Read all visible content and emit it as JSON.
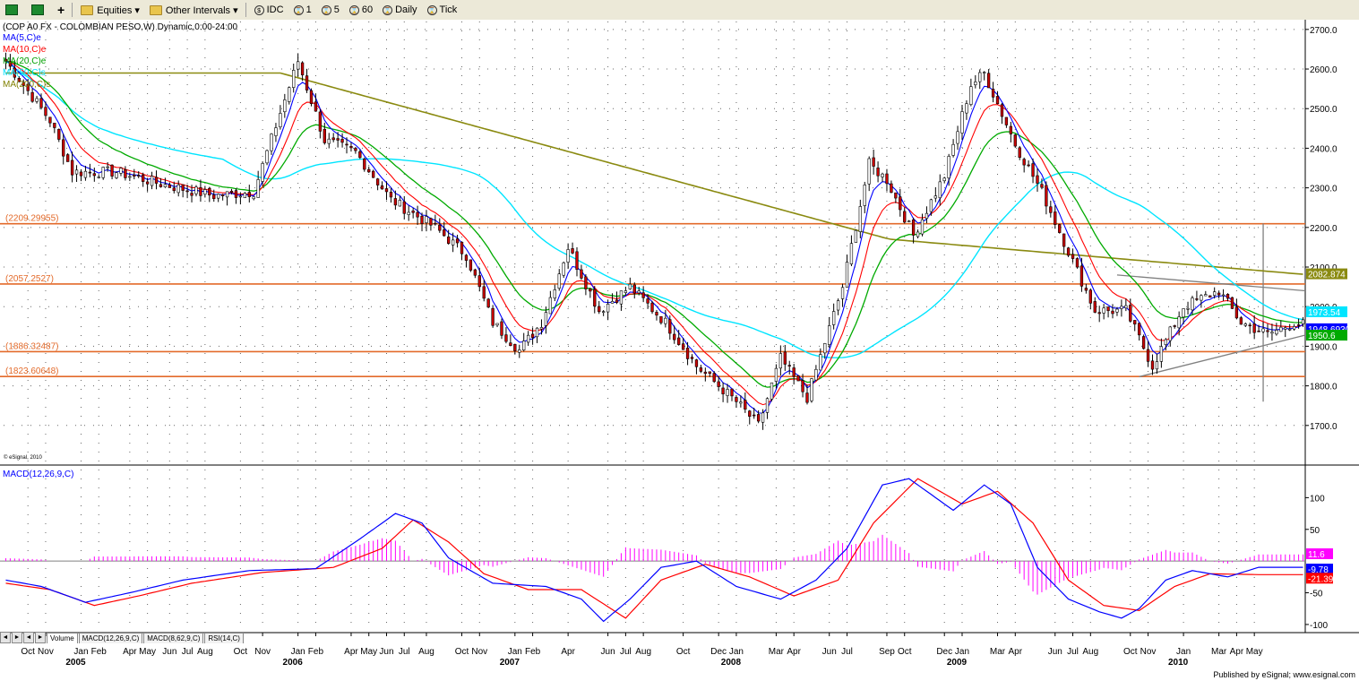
{
  "toolbar": {
    "items": [
      {
        "icon": "grid-view-icon",
        "label": ""
      },
      {
        "icon": "layout-icon",
        "label": ""
      },
      {
        "icon": "add-icon",
        "label": ""
      },
      {
        "icon": "folder-icon",
        "label": "Equities ▾"
      },
      {
        "icon": "folder-icon",
        "label": "Other Intervals ▾"
      },
      {
        "icon": "symbol-icon",
        "label": "IDC"
      },
      {
        "icon": "interval-icon",
        "label": "1"
      },
      {
        "icon": "interval-icon",
        "label": "5"
      },
      {
        "icon": "interval-icon",
        "label": "60"
      },
      {
        "icon": "interval-icon",
        "label": "Daily"
      },
      {
        "icon": "interval-icon",
        "label": "Tick"
      }
    ]
  },
  "chart_data": {
    "type": "candlestick",
    "title": "(COP A0 FX - COLOMBIAN PESO,W) Dynamic,0:00-24:00",
    "watermark": "© eSignal, 2010",
    "footer": "Published by eSignal; www.esignal.com",
    "legend": [
      {
        "label": "MA(5,C)e",
        "color": "#0000ff"
      },
      {
        "label": "MA(10,C)e",
        "color": "#ff0000"
      },
      {
        "label": "MA(20,C)e",
        "color": "#00a000"
      },
      {
        "label": "MA(50,C)s",
        "color": "#00e0ff"
      },
      {
        "label": "MA(200,C)s",
        "color": "#808000"
      }
    ],
    "colors": {
      "ma5": "#0000ff",
      "ma10": "#ff0000",
      "ma20": "#00aa00",
      "ma50": "#00e5ff",
      "ma200": "#8a8a10",
      "up": "#ffffff",
      "down": "#cc0000",
      "hline": "#e36a2a",
      "macd": "#0000ff",
      "signal": "#ff0000",
      "hist": "#ff00ff",
      "trend": "#808080"
    },
    "yaxis": {
      "ylim": [
        1600,
        2720
      ],
      "ticks": [
        "2700.0",
        "2600.0",
        "2500.0",
        "2400.0",
        "2300.0",
        "2200.0",
        "2100.0",
        "2000.0",
        "1900.0",
        "1800.0",
        "1700.0"
      ],
      "tick_values": [
        2700,
        2600,
        2500,
        2400,
        2300,
        2200,
        2100,
        2000,
        1900,
        1800,
        1700
      ]
    },
    "hlines": [
      {
        "label": "(2209.29955)",
        "value": 2209.3
      },
      {
        "label": "(2057.2527)",
        "value": 2057.25
      },
      {
        "label": "(1886.32487)",
        "value": 1886.32
      },
      {
        "label": "(1823.60648)",
        "value": 1823.61
      }
    ],
    "price_tags": [
      {
        "label": "2082.874",
        "value": 2082.874,
        "bg": "#8a8a10",
        "fg": "#ffffff"
      },
      {
        "label": "1973.54",
        "value": 1973.54,
        "bg": "#00e5ff",
        "fg": "#ffffff"
      },
      {
        "label": "1948.69303",
        "value": 1948.69,
        "bg": "#0000ff",
        "fg": "#ffffff"
      },
      {
        "label": "1950.6",
        "value": 1950.6,
        "bg": "#00aa00",
        "fg": "#ffffff"
      }
    ],
    "price_keypoints": [
      [
        0,
        2620
      ],
      [
        10,
        2470
      ],
      [
        15,
        2340
      ],
      [
        25,
        2340
      ],
      [
        35,
        2310
      ],
      [
        47,
        2280
      ],
      [
        56,
        2290
      ],
      [
        62,
        2490
      ],
      [
        66,
        2620
      ],
      [
        72,
        2420
      ],
      [
        79,
        2390
      ],
      [
        87,
        2270
      ],
      [
        97,
        2200
      ],
      [
        104,
        2130
      ],
      [
        110,
        1960
      ],
      [
        116,
        1890
      ],
      [
        121,
        1960
      ],
      [
        127,
        2150
      ],
      [
        134,
        1990
      ],
      [
        141,
        2050
      ],
      [
        149,
        1960
      ],
      [
        156,
        1850
      ],
      [
        165,
        1760
      ],
      [
        170,
        1700
      ],
      [
        175,
        1870
      ],
      [
        181,
        1770
      ],
      [
        189,
        2050
      ],
      [
        195,
        2360
      ],
      [
        199,
        2320
      ],
      [
        205,
        2180
      ],
      [
        212,
        2330
      ],
      [
        218,
        2560
      ],
      [
        221,
        2590
      ],
      [
        228,
        2410
      ],
      [
        234,
        2290
      ],
      [
        240,
        2140
      ],
      [
        246,
        1990
      ],
      [
        253,
        1990
      ],
      [
        259,
        1850
      ],
      [
        266,
        2000
      ],
      [
        274,
        2040
      ],
      [
        279,
        1960
      ],
      [
        285,
        1930
      ],
      [
        291,
        1960
      ],
      [
        293,
        1955
      ]
    ],
    "weeks": 294,
    "x_ticks": [
      {
        "week": 5,
        "label": "Oct"
      },
      {
        "week": 9,
        "label": "Nov"
      },
      {
        "week": 17,
        "label": "Jan"
      },
      {
        "week": 21,
        "label": "Feb"
      },
      {
        "week": 28,
        "label": "Apr"
      },
      {
        "week": 32,
        "label": "May"
      },
      {
        "week": 37,
        "label": "Jun"
      },
      {
        "week": 41,
        "label": "Jul"
      },
      {
        "week": 45,
        "label": "Aug"
      },
      {
        "week": 53,
        "label": "Oct"
      },
      {
        "week": 58,
        "label": "Nov"
      },
      {
        "week": 66,
        "label": "Jan"
      },
      {
        "week": 70,
        "label": "Feb"
      },
      {
        "week": 78,
        "label": "Apr"
      },
      {
        "week": 82,
        "label": "May"
      },
      {
        "week": 86,
        "label": "Jun"
      },
      {
        "week": 90,
        "label": "Jul"
      },
      {
        "week": 95,
        "label": "Aug"
      },
      {
        "week": 103,
        "label": "Oct"
      },
      {
        "week": 107,
        "label": "Nov"
      },
      {
        "week": 115,
        "label": "Jan"
      },
      {
        "week": 119,
        "label": "Feb"
      },
      {
        "week": 127,
        "label": "Apr"
      },
      {
        "week": 136,
        "label": "Jun"
      },
      {
        "week": 140,
        "label": "Jul"
      },
      {
        "week": 144,
        "label": "Aug"
      },
      {
        "week": 153,
        "label": "Oct"
      },
      {
        "week": 161,
        "label": "Dec"
      },
      {
        "week": 165,
        "label": "Jan"
      },
      {
        "week": 174,
        "label": "Mar"
      },
      {
        "week": 178,
        "label": "Apr"
      },
      {
        "week": 186,
        "label": "Jun"
      },
      {
        "week": 190,
        "label": "Jul"
      },
      {
        "week": 199,
        "label": "Sep"
      },
      {
        "week": 203,
        "label": "Oct"
      },
      {
        "week": 212,
        "label": "Dec"
      },
      {
        "week": 216,
        "label": "Jan"
      },
      {
        "week": 224,
        "label": "Mar"
      },
      {
        "week": 228,
        "label": "Apr"
      },
      {
        "week": 237,
        "label": "Jun"
      },
      {
        "week": 241,
        "label": "Jul"
      },
      {
        "week": 245,
        "label": "Aug"
      },
      {
        "week": 254,
        "label": "Oct"
      },
      {
        "week": 258,
        "label": "Nov"
      },
      {
        "week": 266,
        "label": "Jan"
      },
      {
        "week": 274,
        "label": "Mar"
      },
      {
        "week": 278,
        "label": "Apr"
      },
      {
        "week": 282,
        "label": "May"
      }
    ],
    "year_labels": [
      {
        "week": 17,
        "label": "2005"
      },
      {
        "week": 66,
        "label": "2006"
      },
      {
        "week": 115,
        "label": "2007"
      },
      {
        "week": 165,
        "label": "2008"
      },
      {
        "week": 216,
        "label": "2009"
      },
      {
        "week": 266,
        "label": "2010"
      }
    ],
    "macd": {
      "label": "MACD(12,26,9,C)",
      "ylim": [
        -110,
        150
      ],
      "ticks": [
        "100",
        "50",
        "-50",
        "-100"
      ],
      "tick_values": [
        100,
        50,
        -50,
        -100
      ],
      "tags": [
        {
          "label": "11.6",
          "value": 11.6,
          "bg": "#ff00ff"
        },
        {
          "label": "-9.78",
          "value": -9.78,
          "bg": "#0000ff"
        },
        {
          "label": "-21.39",
          "value": -21.39,
          "bg": "#ff0000"
        }
      ],
      "macd_keypoints": [
        [
          0,
          -30
        ],
        [
          8,
          -40
        ],
        [
          18,
          -65
        ],
        [
          28,
          -50
        ],
        [
          40,
          -30
        ],
        [
          55,
          -15
        ],
        [
          70,
          -12
        ],
        [
          80,
          35
        ],
        [
          88,
          75
        ],
        [
          94,
          60
        ],
        [
          100,
          5
        ],
        [
          110,
          -35
        ],
        [
          122,
          -40
        ],
        [
          130,
          -60
        ],
        [
          135,
          -95
        ],
        [
          141,
          -60
        ],
        [
          148,
          -10
        ],
        [
          156,
          0
        ],
        [
          165,
          -40
        ],
        [
          175,
          -60
        ],
        [
          183,
          -30
        ],
        [
          190,
          20
        ],
        [
          198,
          120
        ],
        [
          204,
          130
        ],
        [
          214,
          80
        ],
        [
          221,
          120
        ],
        [
          227,
          90
        ],
        [
          233,
          -10
        ],
        [
          240,
          -60
        ],
        [
          247,
          -80
        ],
        [
          252,
          -90
        ],
        [
          256,
          -75
        ],
        [
          262,
          -30
        ],
        [
          268,
          -15
        ],
        [
          276,
          -25
        ],
        [
          283,
          -9.78
        ]
      ],
      "signal_keypoints": [
        [
          0,
          -35
        ],
        [
          10,
          -45
        ],
        [
          20,
          -70
        ],
        [
          30,
          -55
        ],
        [
          42,
          -35
        ],
        [
          58,
          -18
        ],
        [
          74,
          -10
        ],
        [
          85,
          20
        ],
        [
          92,
          65
        ],
        [
          100,
          30
        ],
        [
          108,
          -20
        ],
        [
          118,
          -45
        ],
        [
          130,
          -45
        ],
        [
          140,
          -90
        ],
        [
          148,
          -30
        ],
        [
          158,
          -5
        ],
        [
          168,
          -25
        ],
        [
          178,
          -55
        ],
        [
          188,
          -30
        ],
        [
          196,
          60
        ],
        [
          206,
          130
        ],
        [
          216,
          90
        ],
        [
          224,
          110
        ],
        [
          232,
          60
        ],
        [
          240,
          -30
        ],
        [
          248,
          -70
        ],
        [
          256,
          -78
        ],
        [
          264,
          -40
        ],
        [
          272,
          -20
        ],
        [
          283,
          -21.39
        ]
      ]
    }
  },
  "tabs": [
    "Volume",
    "MACD(12,26,9,C)",
    "MACD(8,62,9,C)",
    "RSI(14,C)"
  ]
}
